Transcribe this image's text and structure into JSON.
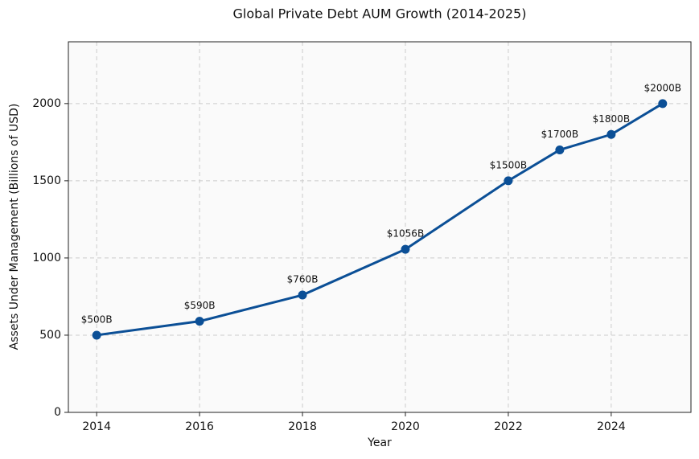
{
  "chart_data": {
    "type": "line",
    "title": "Global Private Debt AUM Growth (2014-2025)",
    "x_label": "Year",
    "y_label": "Assets Under Management (Billions of USD)",
    "x": [
      2014,
      2016,
      2018,
      2020,
      2022,
      2023,
      2024,
      2025
    ],
    "values": [
      500,
      590,
      760,
      1056,
      1500,
      1700,
      1800,
      2000
    ],
    "value_labels": [
      "$500B",
      "$590B",
      "$760B",
      "$1056B",
      "$1500B",
      "$1700B",
      "$1800B",
      "$2000B"
    ],
    "color": "#0b4f96",
    "xlim": [
      2013.45,
      2025.55
    ],
    "xticks": [
      2014,
      2016,
      2018,
      2020,
      2022,
      2024
    ],
    "ylim": [
      0,
      2400
    ],
    "yticks": [
      0,
      500,
      1000,
      1500,
      2000
    ],
    "grid": true
  }
}
